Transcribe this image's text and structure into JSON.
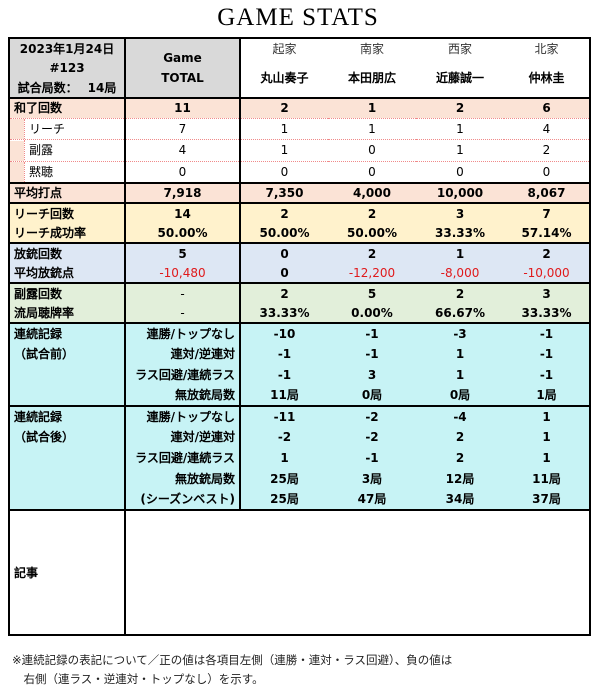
{
  "title": "GAME STATS",
  "header": {
    "date": "2023年1月24日",
    "game_no": "#123",
    "rounds_label": "試合局数：",
    "rounds_value": "14局",
    "total_label_1": "Game",
    "total_label_2": "TOTAL",
    "positions": [
      "起家",
      "南家",
      "西家",
      "北家"
    ],
    "players": [
      "丸山奏子",
      "本田朋広",
      "近藤誠一",
      "仲林圭"
    ]
  },
  "wins": {
    "label": "和了回数",
    "values": [
      "11",
      "2",
      "1",
      "2",
      "6"
    ],
    "sub": [
      {
        "label": "リーチ",
        "values": [
          "7",
          "1",
          "1",
          "1",
          "4"
        ]
      },
      {
        "label": "副露",
        "values": [
          "4",
          "1",
          "0",
          "1",
          "2"
        ]
      },
      {
        "label": "黙聴",
        "values": [
          "0",
          "0",
          "0",
          "0",
          "0"
        ]
      }
    ]
  },
  "avg_points": {
    "label": "平均打点",
    "values": [
      "7,918",
      "7,350",
      "4,000",
      "10,000",
      "8,067"
    ]
  },
  "riichi": {
    "rows": [
      {
        "label": "リーチ回数",
        "values": [
          "14",
          "2",
          "2",
          "3",
          "7"
        ]
      },
      {
        "label": "リーチ成功率",
        "values": [
          "50.00%",
          "50.00%",
          "50.00%",
          "33.33%",
          "57.14%"
        ]
      }
    ]
  },
  "dealin": {
    "rows": [
      {
        "label": "放銃回数",
        "values": [
          "5",
          "0",
          "2",
          "1",
          "2"
        ]
      },
      {
        "label": "平均放銃点",
        "values": [
          "-10,480",
          "0",
          "-12,200",
          "-8,000",
          "-10,000"
        ]
      }
    ]
  },
  "calls": {
    "rows": [
      {
        "label": "副露回数",
        "values": [
          "-",
          "2",
          "5",
          "2",
          "3"
        ]
      },
      {
        "label": "流局聴牌率",
        "values": [
          "-",
          "33.33%",
          "0.00%",
          "66.67%",
          "33.33%"
        ]
      }
    ]
  },
  "streak_before": {
    "label_1": "連続記録",
    "label_2": "（試合前）",
    "rows": [
      {
        "label": "連勝/トップなし",
        "values": [
          "-10",
          "-1",
          "-3",
          "-1"
        ]
      },
      {
        "label": "連対/逆連対",
        "values": [
          "-1",
          "-1",
          "1",
          "-1"
        ]
      },
      {
        "label": "ラス回避/連続ラス",
        "values": [
          "-1",
          "3",
          "1",
          "-1"
        ]
      },
      {
        "label": "無放銃局数",
        "values": [
          "11局",
          "0局",
          "0局",
          "1局"
        ]
      }
    ]
  },
  "streak_after": {
    "label_1": "連続記録",
    "label_2": "（試合後）",
    "rows": [
      {
        "label": "連勝/トップなし",
        "values": [
          "-11",
          "-2",
          "-4",
          "1"
        ]
      },
      {
        "label": "連対/逆連対",
        "values": [
          "-2",
          "-2",
          "2",
          "1"
        ]
      },
      {
        "label": "ラス回避/連続ラス",
        "values": [
          "1",
          "-1",
          "2",
          "1"
        ]
      },
      {
        "label": "無放銃局数",
        "values": [
          "25局",
          "3局",
          "12局",
          "11局"
        ]
      },
      {
        "label": "(シーズンベスト)",
        "values": [
          "25局",
          "47局",
          "34局",
          "37局"
        ]
      }
    ]
  },
  "article": {
    "label": "記事",
    "text": ""
  },
  "footnote": {
    "line1": "※連続記録の表記について／正の値は各項目左側（連勝・連対・ラス回避）、負の値は",
    "line2": "　右側（連ラス・逆連対・トップなし）を示す。"
  }
}
